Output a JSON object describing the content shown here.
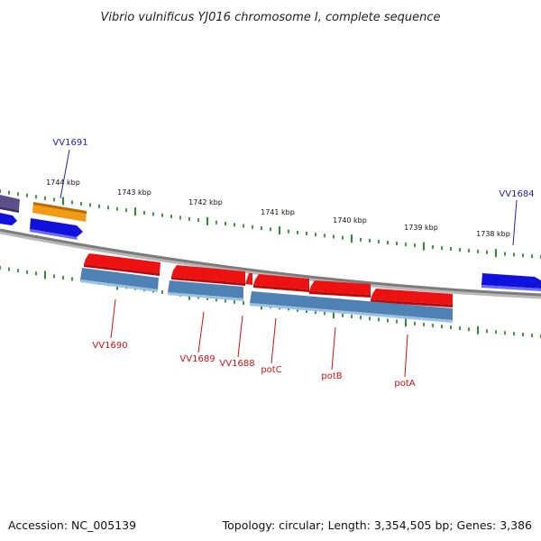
{
  "title": "Vibrio vulnificus YJ016 chromosome I, complete sequence",
  "axis": {
    "ticks": [
      "1744 kbp",
      "1743 kbp",
      "1742 kbp",
      "1741 kbp",
      "1740 kbp",
      "1739 kbp",
      "1738 kbp"
    ]
  },
  "genes": {
    "forward": [
      "VV1691",
      "VV1684"
    ],
    "reverse": [
      "VV1690",
      "VV1689",
      "VV1688",
      "potC",
      "potB",
      "potA"
    ]
  },
  "footer": {
    "accession": "Accession: NC_005139",
    "summary": "Topology: circular; Length: 3,354,505 bp; Genes: 3,386"
  },
  "colors": {
    "backbone": "#8a8a8a",
    "tick_green": "#2e8b2e",
    "cds_red": "#ee1111",
    "gene_steel": "#4f82b4",
    "forward_blue": "#1111dd",
    "forward_orange": "#f39a14",
    "forward_slate": "#5a4f8a",
    "forward_label": "#2222aa",
    "reverse_label": "#cc1111"
  }
}
